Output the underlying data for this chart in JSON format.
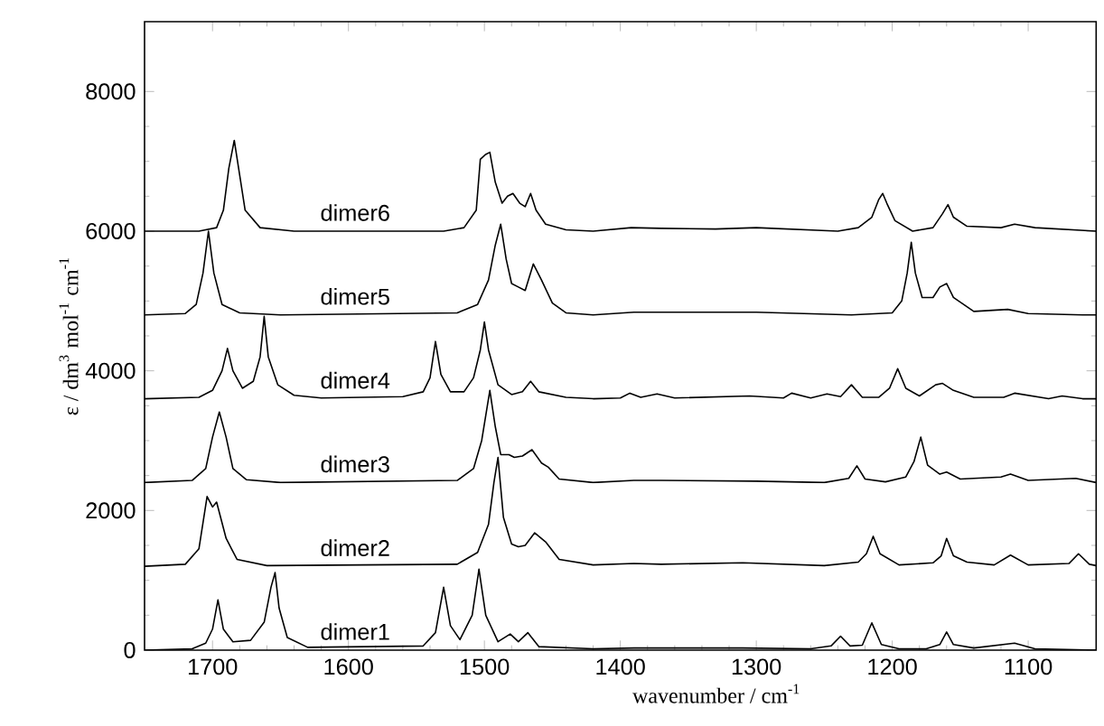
{
  "chart_data": {
    "type": "line",
    "xlabel": "wavenumber / cm$^{-1}$",
    "ylabel": "ε / dm$^{3}$ mol$^{-1}$ cm$^{-1}$",
    "xlim": [
      1750,
      1050
    ],
    "ylim": [
      0,
      9000
    ],
    "xticks": [
      1700,
      1600,
      1500,
      1400,
      1300,
      1200,
      1100
    ],
    "yticks": [
      0,
      2000,
      4000,
      6000,
      8000
    ],
    "series": [
      {
        "name": "dimer1",
        "color": "#000000",
        "x": [
          1750,
          1715,
          1705,
          1700,
          1696,
          1692,
          1685,
          1672,
          1662,
          1657,
          1654,
          1651,
          1645,
          1630,
          1545,
          1536,
          1530,
          1525,
          1518,
          1509,
          1504,
          1499,
          1490,
          1481,
          1475,
          1468,
          1460,
          1420,
          1390,
          1310,
          1260,
          1245,
          1238,
          1231,
          1222,
          1215,
          1208,
          1195,
          1175,
          1165,
          1160,
          1155,
          1140,
          1110,
          1095,
          1050
        ],
        "values": [
          0,
          20,
          100,
          300,
          720,
          300,
          120,
          140,
          400,
          900,
          1110,
          600,
          180,
          40,
          60,
          250,
          900,
          350,
          150,
          500,
          1160,
          500,
          120,
          230,
          120,
          250,
          50,
          20,
          30,
          30,
          20,
          60,
          200,
          60,
          70,
          390,
          80,
          20,
          20,
          80,
          260,
          80,
          30,
          100,
          20,
          0
        ]
      },
      {
        "name": "dimer2",
        "color": "#000000",
        "x": [
          1750,
          1720,
          1710,
          1704,
          1700,
          1697,
          1690,
          1682,
          1660,
          1520,
          1505,
          1497,
          1493,
          1490,
          1486,
          1480,
          1475,
          1470,
          1463,
          1455,
          1445,
          1420,
          1390,
          1370,
          1310,
          1250,
          1225,
          1219,
          1214,
          1209,
          1195,
          1170,
          1164,
          1160,
          1155,
          1145,
          1125,
          1113,
          1100,
          1070,
          1063,
          1055,
          1050
        ],
        "values": [
          1200,
          1230,
          1450,
          2200,
          2050,
          2120,
          1600,
          1300,
          1210,
          1230,
          1400,
          1800,
          2400,
          2760,
          1900,
          1520,
          1480,
          1500,
          1680,
          1550,
          1300,
          1220,
          1240,
          1230,
          1250,
          1210,
          1260,
          1380,
          1630,
          1380,
          1220,
          1250,
          1350,
          1600,
          1350,
          1260,
          1220,
          1360,
          1220,
          1240,
          1380,
          1230,
          1210
        ]
      },
      {
        "name": "dimer3",
        "color": "#000000",
        "x": [
          1750,
          1715,
          1705,
          1700,
          1695,
          1690,
          1685,
          1675,
          1650,
          1520,
          1508,
          1502,
          1496,
          1492,
          1488,
          1482,
          1478,
          1472,
          1465,
          1458,
          1453,
          1445,
          1420,
          1390,
          1370,
          1300,
          1250,
          1232,
          1226,
          1220,
          1205,
          1190,
          1184,
          1179,
          1174,
          1165,
          1160,
          1150,
          1120,
          1113,
          1100,
          1065,
          1050
        ],
        "values": [
          2400,
          2430,
          2600,
          3050,
          3410,
          3050,
          2600,
          2440,
          2400,
          2430,
          2600,
          3000,
          3720,
          3200,
          2800,
          2800,
          2760,
          2780,
          2870,
          2680,
          2620,
          2450,
          2400,
          2430,
          2430,
          2420,
          2400,
          2460,
          2640,
          2450,
          2410,
          2480,
          2700,
          3050,
          2650,
          2520,
          2550,
          2450,
          2480,
          2520,
          2430,
          2460,
          2400
        ]
      },
      {
        "name": "dimer4",
        "color": "#000000",
        "x": [
          1750,
          1710,
          1700,
          1693,
          1689,
          1685,
          1678,
          1670,
          1665,
          1662,
          1659,
          1652,
          1640,
          1620,
          1560,
          1545,
          1540,
          1536,
          1532,
          1525,
          1515,
          1508,
          1503,
          1500,
          1497,
          1490,
          1480,
          1472,
          1466,
          1460,
          1440,
          1420,
          1400,
          1393,
          1385,
          1373,
          1360,
          1305,
          1280,
          1274,
          1260,
          1248,
          1238,
          1230,
          1222,
          1210,
          1202,
          1196,
          1190,
          1180,
          1168,
          1163,
          1155,
          1140,
          1118,
          1110,
          1085,
          1075,
          1060,
          1050
        ],
        "values": [
          3600,
          3620,
          3720,
          4000,
          4320,
          4000,
          3750,
          3850,
          4200,
          4780,
          4200,
          3800,
          3650,
          3610,
          3630,
          3700,
          3900,
          4420,
          3950,
          3700,
          3700,
          3900,
          4300,
          4700,
          4300,
          3800,
          3660,
          3700,
          3850,
          3700,
          3620,
          3600,
          3610,
          3680,
          3620,
          3670,
          3610,
          3640,
          3610,
          3680,
          3610,
          3670,
          3630,
          3800,
          3620,
          3620,
          3750,
          4030,
          3750,
          3640,
          3800,
          3820,
          3720,
          3620,
          3620,
          3680,
          3600,
          3640,
          3600,
          3600
        ]
      },
      {
        "name": "dimer5",
        "color": "#000000",
        "x": [
          1750,
          1720,
          1712,
          1707,
          1703,
          1699,
          1693,
          1680,
          1650,
          1520,
          1505,
          1497,
          1492,
          1488,
          1484,
          1480,
          1475,
          1470,
          1464,
          1458,
          1450,
          1440,
          1420,
          1390,
          1375,
          1300,
          1230,
          1200,
          1193,
          1189,
          1186,
          1183,
          1178,
          1170,
          1165,
          1160,
          1155,
          1140,
          1115,
          1100,
          1060,
          1050
        ],
        "values": [
          4800,
          4820,
          4950,
          5400,
          6000,
          5400,
          4950,
          4830,
          4800,
          4830,
          4950,
          5300,
          5800,
          6100,
          5600,
          5250,
          5200,
          5150,
          5530,
          5300,
          4970,
          4830,
          4800,
          4840,
          4840,
          4840,
          4800,
          4830,
          5000,
          5400,
          5840,
          5400,
          5050,
          5050,
          5200,
          5250,
          5050,
          4850,
          4880,
          4820,
          4800,
          4800
        ]
      },
      {
        "name": "dimer6",
        "color": "#000000",
        "x": [
          1750,
          1710,
          1697,
          1692,
          1688,
          1684,
          1680,
          1676,
          1665,
          1640,
          1530,
          1515,
          1506,
          1503,
          1499,
          1496,
          1492,
          1487,
          1483,
          1479,
          1474,
          1470,
          1466,
          1462,
          1455,
          1440,
          1420,
          1392,
          1370,
          1330,
          1300,
          1240,
          1225,
          1215,
          1210,
          1207,
          1204,
          1198,
          1185,
          1170,
          1163,
          1159,
          1155,
          1145,
          1120,
          1110,
          1095,
          1050
        ],
        "values": [
          6000,
          6000,
          6050,
          6300,
          6900,
          7300,
          6800,
          6300,
          6050,
          6000,
          6000,
          6050,
          6300,
          7030,
          7100,
          7130,
          6700,
          6400,
          6500,
          6540,
          6400,
          6350,
          6540,
          6300,
          6100,
          6020,
          6000,
          6050,
          6040,
          6030,
          6050,
          6000,
          6050,
          6200,
          6450,
          6540,
          6400,
          6150,
          6000,
          6050,
          6250,
          6380,
          6200,
          6070,
          6050,
          6100,
          6050,
          6000
        ]
      }
    ]
  }
}
